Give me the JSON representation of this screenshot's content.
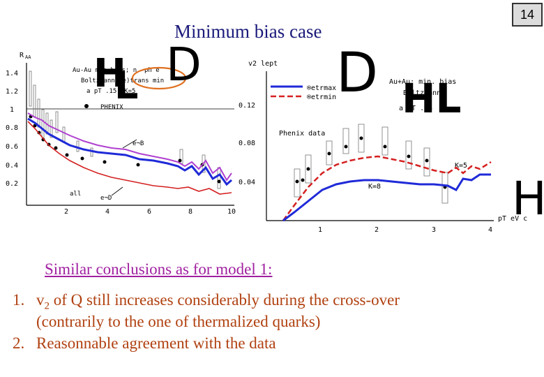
{
  "slide": {
    "page_number": "14",
    "title": "Minimum bias case",
    "conclusion_heading": "Similar conclusions as for model 1:",
    "items": [
      {
        "num": "1.",
        "line1_pre": "v",
        "line1_sub": "2",
        "line1_post": " of Q still increases considerably during the cross-over",
        "line2": "(contrarily to the one of thermalized quarks)"
      },
      {
        "num": "2.",
        "line1": "Reasonnable agreement with the data"
      }
    ]
  },
  "left_plot": {
    "ylabel": "R",
    "ylabel_sub": "AA",
    "legend_lines": [
      "Au-Au min bias; n.-ph e",
      "Boltzmann (e)trans min",
      "a pT  .15, K=5"
    ],
    "phenix_label": "PHENIX",
    "annot_eB": "e¬B",
    "annot_all": "all",
    "annot_eD": "e¬D",
    "yticks": [
      "1.4",
      "1.2",
      "1",
      "0.8",
      "0.6",
      "0.4",
      "0.2"
    ],
    "xticks": [
      "2",
      "4",
      "6",
      "8",
      "10"
    ]
  },
  "right_plot": {
    "ylabel": "v2 lept",
    "legend": [
      "®etrmax",
      "®etrmin"
    ],
    "annot_phenix": "Phenix data",
    "annot_k5": "K=5",
    "annot_k8": "K=8",
    "info_lines": [
      "Au+Au; min. bias",
      "Boltzmann",
      "a pT  .15"
    ],
    "yticks": [
      "0.12",
      "0.08",
      "0.04"
    ],
    "xticks": [
      "1",
      "2",
      "3",
      "4"
    ],
    "xlabel": "pT  eV  c"
  },
  "glyphs": {
    "left_H": "H",
    "left_L": "L",
    "left_D": "D",
    "right_D": "D",
    "right_HL": "HL",
    "far_H": "H"
  },
  "colors": {
    "title": "#1a1a7a",
    "heading": "#a020a0",
    "list": "#b04010",
    "blue": "#1f2ad8",
    "red": "#d42020",
    "magenta": "#b040d0",
    "circle": "#e07020"
  }
}
